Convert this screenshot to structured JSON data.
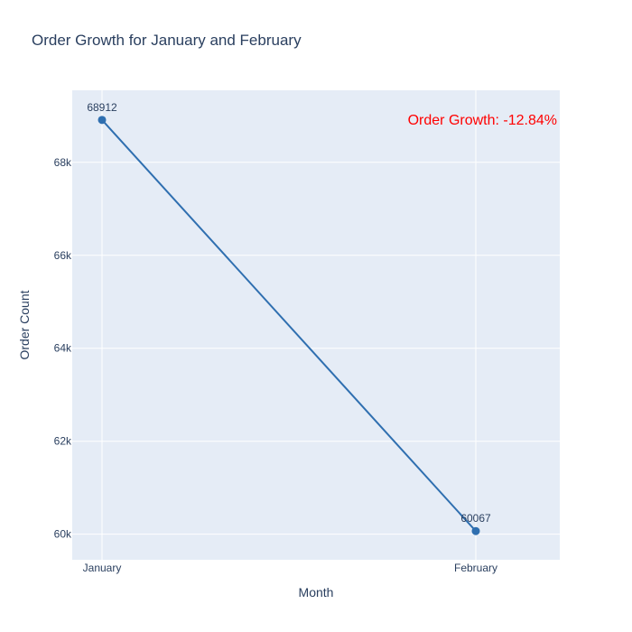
{
  "chart_data": {
    "type": "line",
    "title": "Order Growth for January and February",
    "xlabel": "Month",
    "ylabel": "Order Count",
    "categories": [
      "January",
      "February"
    ],
    "series": [
      {
        "values": [
          68912,
          60067
        ],
        "color": "#2f6fb0",
        "data_labels": [
          "68912",
          "60067"
        ]
      }
    ],
    "ylim": [
      59450,
      69550
    ],
    "yticks": [
      60000,
      62000,
      64000,
      66000,
      68000
    ],
    "ytick_labels": [
      "60k",
      "62k",
      "64k",
      "66k",
      "68k"
    ],
    "grid": true,
    "annotation": {
      "text": "Order Growth: -12.84%",
      "color": "#ff0000",
      "placement": "top-right"
    },
    "plot_background": "#e5ecf6"
  }
}
